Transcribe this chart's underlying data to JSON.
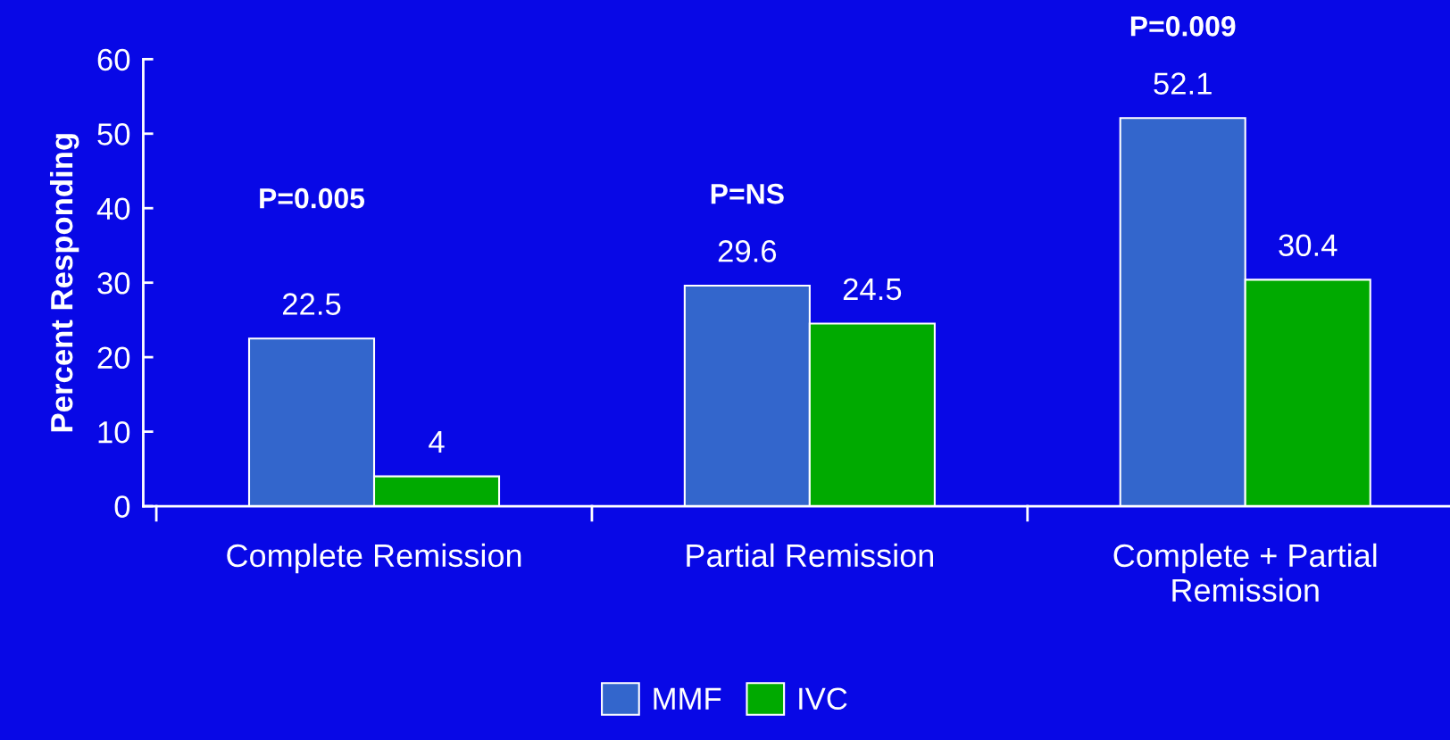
{
  "chart_data": {
    "type": "bar",
    "ylabel": "Percent Responding",
    "categories": [
      "Complete Remission",
      "Partial Remission",
      "Complete + Partial\nRemission"
    ],
    "series": [
      {
        "name": "MMF",
        "color": "#3366cc",
        "values": [
          22.5,
          29.6,
          52.1
        ]
      },
      {
        "name": "IVC",
        "color": "#00aa00",
        "values": [
          4,
          24.5,
          30.4
        ]
      }
    ],
    "ylim": [
      0,
      60
    ],
    "yticks": [
      0,
      10,
      20,
      30,
      40,
      50,
      60
    ],
    "data_labels": true,
    "grid": false,
    "legend": "bottom",
    "annotations": [
      "P=0.005",
      "P=NS",
      "P=0.009"
    ]
  }
}
